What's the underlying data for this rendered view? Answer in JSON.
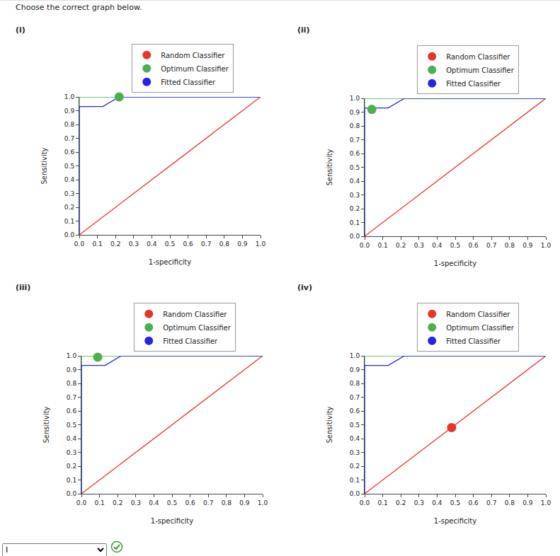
{
  "prompt": "Choose the correct graph below.",
  "answer": "I",
  "chart_data": [
    {
      "type": "line",
      "title": "(i)",
      "x_label": "1-specificity",
      "y_label": "Sensitivity",
      "xlim": [
        0,
        1
      ],
      "ylim": [
        0,
        1
      ],
      "grid": false,
      "legend": "top",
      "xticks": [
        {
          "value": 0,
          "label": "0.0"
        },
        0.1,
        0.2,
        0.3,
        0.4,
        0.5,
        0.6,
        0.7,
        0.8,
        0.9,
        {
          "value": 1,
          "label": "1.0"
        }
      ],
      "yticks": [
        {
          "value": 0,
          "label": "0.0"
        },
        0.1,
        0.2,
        0.3,
        0.4,
        0.5,
        0.6,
        0.7,
        0.8,
        0.9,
        {
          "value": 1,
          "label": "1.0"
        }
      ],
      "series": [
        {
          "name": "Random Classifier",
          "color": "#e8342b",
          "x": [
            0,
            1
          ],
          "values": [
            0,
            1
          ]
        },
        {
          "name": "Optimum Classifier",
          "color": "#4caf50",
          "x": [
            0,
            0,
            1
          ],
          "values": [
            0,
            1,
            1
          ]
        },
        {
          "name": "Fitted Classifier",
          "color": "#2424e8",
          "x": [
            0,
            0,
            0.13,
            0.22,
            1
          ],
          "values": [
            0,
            0.93,
            0.93,
            1,
            1
          ]
        }
      ],
      "point": {
        "x": 0.22,
        "y": 1,
        "series": "Optimum Classifier"
      }
    },
    {
      "type": "line",
      "title": "(ii)",
      "x_label": "1-specificity",
      "y_label": "Sensitivity",
      "xlim": [
        0,
        1
      ],
      "ylim": [
        0,
        1
      ],
      "grid": false,
      "legend": "top",
      "xticks": [
        {
          "value": 0,
          "label": "0.0"
        },
        0.1,
        0.2,
        0.3,
        0.4,
        0.5,
        0.6,
        0.7,
        0.8,
        0.9,
        {
          "value": 1,
          "label": "1.0"
        }
      ],
      "yticks": [
        {
          "value": 0,
          "label": "0.0"
        },
        0.1,
        0.2,
        0.3,
        0.4,
        0.5,
        0.6,
        0.7,
        0.8,
        0.9,
        {
          "value": 1,
          "label": "1.0"
        }
      ],
      "series": [
        {
          "name": "Random Classifier",
          "color": "#e8342b",
          "x": [
            0,
            1
          ],
          "values": [
            0,
            1
          ]
        },
        {
          "name": "Optimum Classifier",
          "color": "#4caf50",
          "x": [
            0,
            0,
            1
          ],
          "values": [
            0,
            1,
            1
          ]
        },
        {
          "name": "Fitted Classifier",
          "color": "#2424e8",
          "x": [
            0,
            0,
            0.13,
            0.22,
            1
          ],
          "values": [
            0,
            0.93,
            0.93,
            1,
            1
          ]
        }
      ],
      "point": {
        "x": 0.04,
        "y": 0.92,
        "series": "Optimum Classifier"
      }
    },
    {
      "type": "line",
      "title": "(iii)",
      "x_label": "1-specificity",
      "y_label": "Sensitivity",
      "xlim": [
        0,
        1
      ],
      "ylim": [
        0,
        1
      ],
      "grid": false,
      "legend": "top",
      "xticks": [
        {
          "value": 0,
          "label": "0.0"
        },
        0.1,
        0.2,
        0.3,
        0.4,
        0.5,
        0.6,
        0.7,
        0.8,
        0.9,
        {
          "value": 1,
          "label": "1.0"
        }
      ],
      "yticks": [
        {
          "value": 0,
          "label": "0.0"
        },
        0.1,
        0.2,
        0.3,
        0.4,
        0.5,
        0.6,
        0.7,
        0.8,
        0.9,
        {
          "value": 1,
          "label": "1.0"
        }
      ],
      "series": [
        {
          "name": "Random Classifier",
          "color": "#e8342b",
          "x": [
            0,
            1
          ],
          "values": [
            0,
            1
          ]
        },
        {
          "name": "Optimum Classifier",
          "color": "#4caf50",
          "x": [
            0,
            0,
            1
          ],
          "values": [
            0,
            1,
            1
          ]
        },
        {
          "name": "Fitted Classifier",
          "color": "#2424e8",
          "x": [
            0,
            0,
            0.13,
            0.22,
            1
          ],
          "values": [
            0,
            0.93,
            0.93,
            1,
            1
          ]
        }
      ],
      "point": {
        "x": 0.09,
        "y": 0.99,
        "series": "Optimum Classifier"
      }
    },
    {
      "type": "line",
      "title": "(iv)",
      "x_label": "1-specificity",
      "y_label": "Sensitivity",
      "xlim": [
        0,
        1
      ],
      "ylim": [
        0,
        1
      ],
      "grid": false,
      "legend": "top",
      "xticks": [
        {
          "value": 0,
          "label": "0.0"
        },
        0.1,
        0.2,
        0.3,
        0.4,
        0.5,
        0.6,
        0.7,
        0.8,
        0.9,
        {
          "value": 1,
          "label": "1.0"
        }
      ],
      "yticks": [
        {
          "value": 0,
          "label": "0.0"
        },
        0.1,
        0.2,
        0.3,
        0.4,
        0.5,
        0.6,
        0.7,
        0.8,
        0.9,
        {
          "value": 1,
          "label": "1.0"
        }
      ],
      "series": [
        {
          "name": "Random Classifier",
          "color": "#e8342b",
          "x": [
            0,
            1
          ],
          "values": [
            0,
            1
          ]
        },
        {
          "name": "Optimum Classifier",
          "color": "#4caf50",
          "x": [
            0,
            0,
            1
          ],
          "values": [
            0,
            1,
            1
          ]
        },
        {
          "name": "Fitted Classifier",
          "color": "#2424e8",
          "x": [
            0,
            0,
            0.13,
            0.22,
            1
          ],
          "values": [
            0,
            0.93,
            0.93,
            1,
            1
          ]
        }
      ],
      "point": {
        "x": 0.48,
        "y": 0.48,
        "series": "Random Classifier"
      }
    }
  ]
}
